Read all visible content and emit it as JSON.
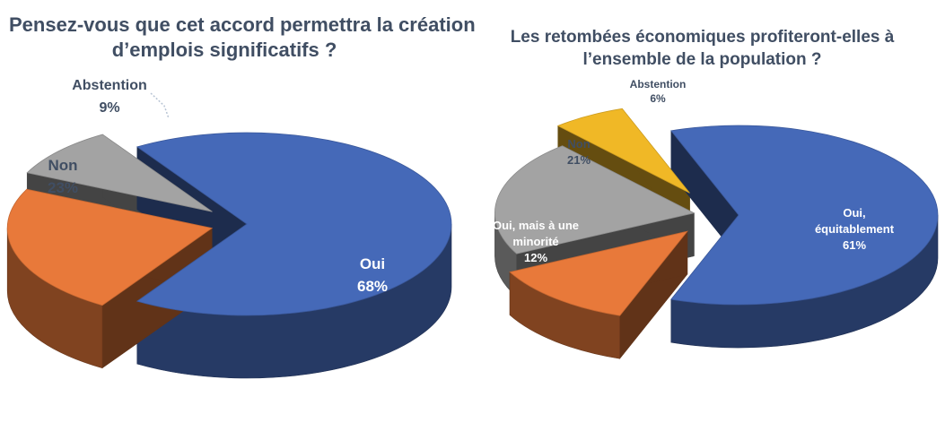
{
  "chart_data": [
    {
      "type": "pie",
      "title": "Pensez-vous que cet accord permettra la création d’emplois significatifs ?",
      "title_lines": [
        "Pensez-vous que cet accord permettra la création",
        "d’emplois significatifs ?"
      ],
      "slices": [
        {
          "label": "Oui",
          "value": 68,
          "value_label": "68%",
          "color": "#4569b8"
        },
        {
          "label": "Non",
          "value": 23,
          "value_label": "23%",
          "color": "#e8793a"
        },
        {
          "label": "Abstention",
          "value": 9,
          "value_label": "9%",
          "color": "#a3a3a3"
        }
      ],
      "three_d": true,
      "exploded": true
    },
    {
      "type": "pie",
      "title": "Les retombées économiques profiteront-elles à l’ensemble de la population ?",
      "title_lines": [
        "Les retombées économiques profiteront-elles à",
        "l’ensemble de la population ?"
      ],
      "slices": [
        {
          "label": "Oui, équitablement",
          "label_lines": [
            "Oui,",
            "équitablement"
          ],
          "value": 61,
          "value_label": "61%",
          "color": "#4569b8"
        },
        {
          "label": "Oui, mais à une minorité",
          "label_lines": [
            "Oui, mais à une",
            "minorité"
          ],
          "value": 12,
          "value_label": "12%",
          "color": "#e8793a"
        },
        {
          "label": "Non",
          "label_lines": [
            "Non"
          ],
          "value": 21,
          "value_label": "21%",
          "color": "#a3a3a3"
        },
        {
          "label": "Abstention",
          "label_lines": [
            "Abstention"
          ],
          "value": 6,
          "value_label": "6%",
          "color": "#f0b826"
        }
      ],
      "three_d": true,
      "exploded": true
    }
  ]
}
